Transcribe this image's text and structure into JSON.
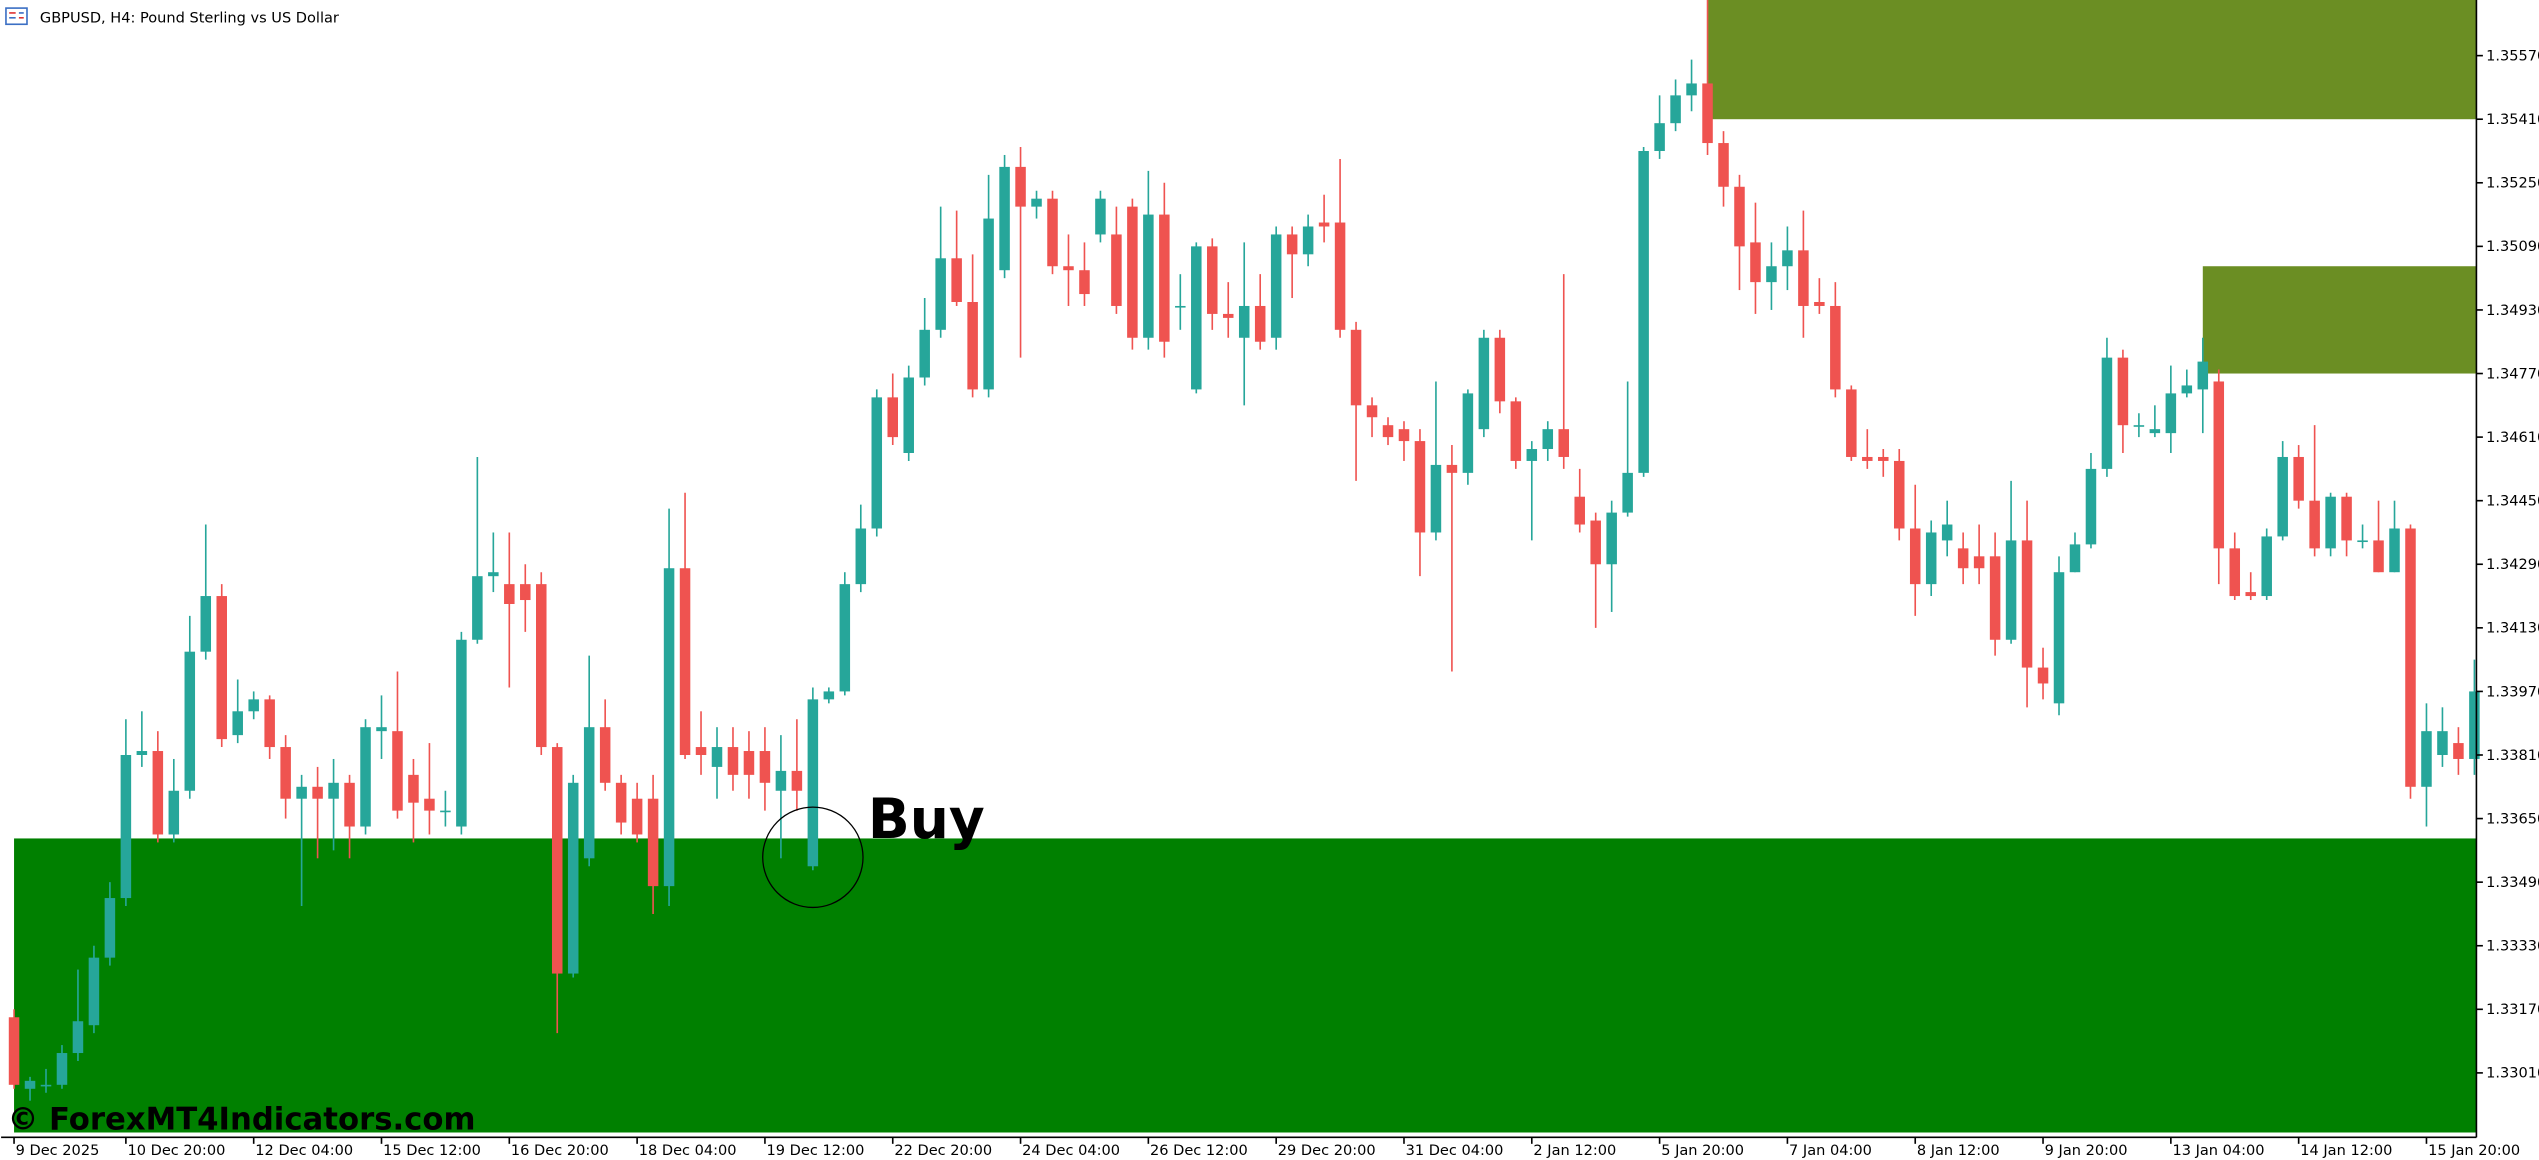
{
  "chart_data": {
    "type": "candlestick",
    "title": "GBPUSD, H4:  Pound Sterling vs US Dollar",
    "categories": [
      "9 Dec 2025",
      null,
      null,
      null,
      null,
      null,
      null,
      "10 Dec 20:00",
      null,
      null,
      null,
      null,
      null,
      null,
      null,
      "12 Dec 04:00",
      null,
      null,
      null,
      null,
      null,
      null,
      null,
      "15 Dec 12:00",
      null,
      null,
      null,
      null,
      null,
      null,
      null,
      "16 Dec 20:00",
      null,
      null,
      null,
      null,
      null,
      null,
      null,
      "18 Dec 04:00",
      null,
      null,
      null,
      null,
      null,
      null,
      null,
      "19 Dec 12:00",
      null,
      null,
      null,
      null,
      null,
      null,
      null,
      "22 Dec 20:00",
      null,
      null,
      null,
      null,
      null,
      null,
      null,
      "24 Dec 04:00",
      null,
      null,
      null,
      null,
      null,
      null,
      null,
      "26 Dec 12:00",
      null,
      null,
      null,
      null,
      null,
      null,
      null,
      "29 Dec 20:00",
      null,
      null,
      null,
      null,
      null,
      null,
      null,
      "31 Dec 04:00",
      null,
      null,
      null,
      null,
      null,
      null,
      null,
      "2 Jan 12:00",
      null,
      null,
      null,
      null,
      null,
      null,
      null,
      "5 Jan 20:00",
      null,
      null,
      null,
      null,
      null,
      null,
      null,
      "7 Jan 04:00",
      null,
      null,
      null,
      null,
      null,
      null,
      null,
      "8 Jan 12:00",
      null,
      null,
      null,
      null,
      null,
      null,
      null,
      "9 Jan 20:00",
      null,
      null,
      null,
      null,
      null,
      null,
      null,
      "13 Jan 04:00",
      null,
      null,
      null,
      null,
      null,
      null,
      null,
      "14 Jan 12:00",
      null,
      null,
      null,
      null,
      null,
      null,
      null,
      "15 Jan 20:00",
      null,
      null,
      null
    ],
    "open": [
      1.3315,
      1.3297,
      1.3298,
      1.3298,
      1.3306,
      1.3313,
      1.333,
      1.3345,
      1.3381,
      1.3382,
      1.3361,
      1.3372,
      1.3407,
      1.3421,
      1.3386,
      1.3392,
      1.3395,
      1.3383,
      1.337,
      1.3373,
      1.337,
      1.3374,
      1.3363,
      1.3387,
      1.3387,
      1.3376,
      1.337,
      1.3367,
      1.3363,
      1.341,
      1.3426,
      1.3424,
      1.3424,
      1.3424,
      1.3383,
      1.3326,
      1.3355,
      1.3388,
      1.3374,
      1.337,
      1.337,
      1.3348,
      1.3428,
      1.3383,
      1.3378,
      1.3383,
      1.3382,
      1.3382,
      1.3372,
      1.3377,
      1.3353,
      1.3395,
      1.3397,
      1.3424,
      1.3438,
      1.3471,
      1.3457,
      1.3476,
      1.3488,
      1.3506,
      1.3495,
      1.3473,
      1.3503,
      1.3529,
      1.3519,
      1.3521,
      1.3504,
      1.3503,
      1.3512,
      1.3512,
      1.3519,
      1.3486,
      1.3517,
      1.3494,
      1.3473,
      1.3509,
      1.3492,
      1.3486,
      1.3494,
      1.3486,
      1.3512,
      1.3507,
      1.3515,
      1.3515,
      1.3488,
      1.3469,
      1.3464,
      1.3463,
      1.346,
      1.3437,
      1.3454,
      1.3452,
      1.3463,
      1.3486,
      1.347,
      1.3455,
      1.3458,
      1.3463,
      1.3446,
      1.344,
      1.3429,
      1.3442,
      1.3452,
      1.3533,
      1.354,
      1.3547,
      1.355,
      1.3535,
      1.3524,
      1.351,
      1.35,
      1.3504,
      1.3508,
      1.3495,
      1.3494,
      1.3473,
      1.3456,
      1.3456,
      1.3455,
      1.3438,
      1.3424,
      1.3435,
      1.3433,
      1.3431,
      1.3431,
      1.341,
      1.3435,
      1.3403,
      1.3394,
      1.3427,
      1.3434,
      1.3453,
      1.3481,
      1.3464,
      1.3462,
      1.3462,
      1.3472,
      1.3473,
      1.3475,
      1.3433,
      1.3422,
      1.3421,
      1.3436,
      1.3456,
      1.3445,
      1.3433,
      1.3446,
      1.3435,
      1.3435,
      1.3427,
      1.3438,
      1.3373,
      1.3381,
      1.3384,
      1.338
    ],
    "high": [
      1.3317,
      1.33,
      1.3302,
      1.3308,
      1.3327,
      1.3333,
      1.3349,
      1.339,
      1.3392,
      1.3387,
      1.338,
      1.3416,
      1.3439,
      1.3424,
      1.34,
      1.3397,
      1.3396,
      1.3386,
      1.3376,
      1.3378,
      1.338,
      1.3376,
      1.339,
      1.3396,
      1.3402,
      1.338,
      1.3384,
      1.3372,
      1.3412,
      1.3456,
      1.3437,
      1.3437,
      1.3429,
      1.3427,
      1.3384,
      1.3376,
      1.3406,
      1.3395,
      1.3376,
      1.3374,
      1.3376,
      1.3443,
      1.3447,
      1.3392,
      1.3388,
      1.3388,
      1.3387,
      1.3388,
      1.3386,
      1.339,
      1.3398,
      1.3398,
      1.3427,
      1.3444,
      1.3473,
      1.3477,
      1.3479,
      1.3496,
      1.3519,
      1.3518,
      1.3507,
      1.3527,
      1.3532,
      1.3534,
      1.3523,
      1.3523,
      1.3512,
      1.351,
      1.3523,
      1.3519,
      1.3521,
      1.3528,
      1.3525,
      1.3502,
      1.351,
      1.3511,
      1.35,
      1.351,
      1.3502,
      1.3514,
      1.3514,
      1.3517,
      1.3522,
      1.3531,
      1.349,
      1.3471,
      1.3466,
      1.3465,
      1.3463,
      1.3475,
      1.3459,
      1.3473,
      1.3488,
      1.3488,
      1.3471,
      1.346,
      1.3465,
      1.3502,
      1.3453,
      1.3442,
      1.3445,
      1.3475,
      1.3534,
      1.3547,
      1.3551,
      1.3556,
      1.3571,
      1.3538,
      1.3527,
      1.352,
      1.351,
      1.3514,
      1.3518,
      1.3501,
      1.35,
      1.3474,
      1.3463,
      1.3458,
      1.3458,
      1.3449,
      1.344,
      1.3445,
      1.3437,
      1.3439,
      1.3437,
      1.345,
      1.3445,
      1.3408,
      1.3431,
      1.3437,
      1.3457,
      1.3486,
      1.3483,
      1.3467,
      1.3469,
      1.3479,
      1.3478,
      1.3486,
      1.3478,
      1.3437,
      1.3427,
      1.3438,
      1.346,
      1.3459,
      1.3464,
      1.3447,
      1.3447,
      1.3439,
      1.3445,
      1.3445,
      1.3439,
      1.3394,
      1.3393,
      1.3388,
      1.3405
    ],
    "low": [
      1.3297,
      1.3294,
      1.3296,
      1.3297,
      1.3304,
      1.3311,
      1.3328,
      1.3343,
      1.3378,
      1.3359,
      1.3359,
      1.337,
      1.3405,
      1.3383,
      1.3384,
      1.339,
      1.338,
      1.3365,
      1.3343,
      1.3355,
      1.3357,
      1.3355,
      1.3361,
      1.338,
      1.3365,
      1.3359,
      1.3361,
      1.3363,
      1.3361,
      1.3409,
      1.3422,
      1.3398,
      1.3412,
      1.3381,
      1.3311,
      1.3325,
      1.3353,
      1.3372,
      1.3361,
      1.3359,
      1.3341,
      1.3343,
      1.338,
      1.3376,
      1.337,
      1.3372,
      1.337,
      1.3367,
      1.3355,
      1.3367,
      1.3352,
      1.3394,
      1.3396,
      1.3422,
      1.3436,
      1.3459,
      1.3455,
      1.3474,
      1.3486,
      1.3494,
      1.3471,
      1.3471,
      1.3501,
      1.3481,
      1.3516,
      1.3502,
      1.3494,
      1.3494,
      1.351,
      1.3492,
      1.3483,
      1.3483,
      1.3481,
      1.3488,
      1.3472,
      1.3488,
      1.3486,
      1.3469,
      1.3483,
      1.3483,
      1.3496,
      1.3504,
      1.351,
      1.3486,
      1.345,
      1.3461,
      1.3459,
      1.3455,
      1.3426,
      1.3435,
      1.3402,
      1.3449,
      1.3461,
      1.3467,
      1.3453,
      1.3435,
      1.3455,
      1.3453,
      1.3437,
      1.3413,
      1.3417,
      1.3441,
      1.3451,
      1.3531,
      1.3538,
      1.3543,
      1.3532,
      1.3519,
      1.3498,
      1.3492,
      1.3493,
      1.3498,
      1.3486,
      1.3492,
      1.3471,
      1.3455,
      1.3453,
      1.3451,
      1.3435,
      1.3416,
      1.3421,
      1.3431,
      1.3424,
      1.3424,
      1.3406,
      1.3409,
      1.3393,
      1.3395,
      1.3391,
      1.3427,
      1.3433,
      1.3451,
      1.3457,
      1.3461,
      1.3461,
      1.3457,
      1.3471,
      1.3462,
      1.3424,
      1.342,
      1.342,
      1.342,
      1.3435,
      1.3443,
      1.3431,
      1.3431,
      1.3431,
      1.3433,
      1.3427,
      1.3427,
      1.337,
      1.3363,
      1.3378,
      1.3376,
      1.3376
    ],
    "close": [
      1.3298,
      1.3299,
      1.3298,
      1.3306,
      1.3314,
      1.333,
      1.3345,
      1.3381,
      1.3382,
      1.3361,
      1.3372,
      1.3407,
      1.3421,
      1.3385,
      1.3392,
      1.3395,
      1.3383,
      1.337,
      1.3373,
      1.337,
      1.3374,
      1.3363,
      1.3388,
      1.3388,
      1.3367,
      1.3369,
      1.3367,
      1.3367,
      1.341,
      1.3426,
      1.3427,
      1.3419,
      1.342,
      1.3383,
      1.3326,
      1.3374,
      1.3388,
      1.3374,
      1.3364,
      1.3361,
      1.3348,
      1.3428,
      1.3381,
      1.3381,
      1.3383,
      1.3376,
      1.3376,
      1.3374,
      1.3377,
      1.3372,
      1.3395,
      1.3397,
      1.3424,
      1.3438,
      1.3471,
      1.3461,
      1.3476,
      1.3488,
      1.3506,
      1.3495,
      1.3473,
      1.3516,
      1.3529,
      1.3519,
      1.3521,
      1.3504,
      1.3503,
      1.3497,
      1.3521,
      1.3494,
      1.3486,
      1.3517,
      1.3485,
      1.3494,
      1.3509,
      1.3492,
      1.3491,
      1.3494,
      1.3485,
      1.3512,
      1.3507,
      1.3514,
      1.3514,
      1.3488,
      1.3469,
      1.3466,
      1.3461,
      1.346,
      1.3437,
      1.3454,
      1.3452,
      1.3472,
      1.3486,
      1.347,
      1.3455,
      1.3458,
      1.3463,
      1.3456,
      1.3439,
      1.3429,
      1.3442,
      1.3452,
      1.3533,
      1.354,
      1.3547,
      1.355,
      1.3535,
      1.3524,
      1.3509,
      1.35,
      1.3504,
      1.3508,
      1.3494,
      1.3494,
      1.3473,
      1.3456,
      1.3455,
      1.3455,
      1.3438,
      1.3424,
      1.3437,
      1.3439,
      1.3428,
      1.3428,
      1.341,
      1.3435,
      1.3403,
      1.3399,
      1.3427,
      1.3434,
      1.3453,
      1.3481,
      1.3464,
      1.3464,
      1.3463,
      1.3472,
      1.3474,
      1.348,
      1.3433,
      1.3421,
      1.3421,
      1.3436,
      1.3456,
      1.3445,
      1.3433,
      1.3446,
      1.3435,
      1.3435,
      1.3427,
      1.3438,
      1.3373,
      1.3387,
      1.3387,
      1.338,
      1.3397
    ],
    "up_color": "#26a69a",
    "down_color": "#ef5350",
    "ylim": [
      1.3286,
      1.3571
    ],
    "yticks": [
      {
        "value": 1.3301,
        "label": "1.33010"
      },
      {
        "value": 1.3317,
        "label": "1.33170"
      },
      {
        "value": 1.3333,
        "label": "1.33330"
      },
      {
        "value": 1.3349,
        "label": "1.33490"
      },
      {
        "value": 1.3365,
        "label": "1.33650"
      },
      {
        "value": 1.3381,
        "label": "1.33810"
      },
      {
        "value": 1.3397,
        "label": "1.33970"
      },
      {
        "value": 1.3413,
        "label": "1.34130"
      },
      {
        "value": 1.3429,
        "label": "1.34290"
      },
      {
        "value": 1.3445,
        "label": "1.34450"
      },
      {
        "value": 1.3461,
        "label": "1.34610"
      },
      {
        "value": 1.3477,
        "label": "1.34770"
      },
      {
        "value": 1.3493,
        "label": "1.34930"
      },
      {
        "value": 1.3509,
        "label": "1.35090"
      },
      {
        "value": 1.3525,
        "label": "1.35250"
      },
      {
        "value": 1.3541,
        "label": "1.35410"
      },
      {
        "value": 1.3557,
        "label": "1.35570"
      }
    ],
    "zones": [
      {
        "top": 1.336,
        "bottom": 1.3286,
        "start_index": 0,
        "color": "#008000"
      },
      {
        "top": 1.3571,
        "bottom": 1.3541,
        "start_index": 106,
        "color": "#6b8e23"
      },
      {
        "top": 1.3504,
        "bottom": 1.3477,
        "start_index": 137,
        "color": "#6b8e23"
      }
    ],
    "annotation": {
      "text": "Buy",
      "index": 50
    },
    "watermark": "© ForexMT4Indicators.com"
  }
}
